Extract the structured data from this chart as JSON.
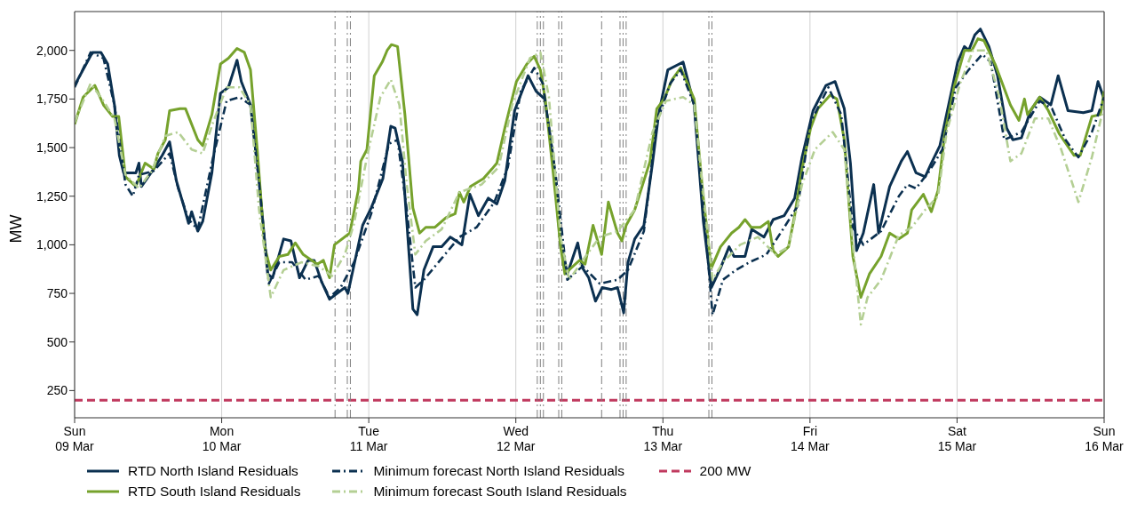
{
  "chart_data": {
    "type": "line",
    "ylabel": "MW",
    "xlim": [
      "--03-09",
      "--03-16"
    ],
    "ylim": [
      110,
      2200
    ],
    "xticks": [
      {
        "value": "--03-09",
        "label": "Sun\n09 Mar"
      },
      {
        "value": "--03-10",
        "label": "Mon\n10 Mar"
      },
      {
        "value": "--03-11",
        "label": "Tue\n11 Mar"
      },
      {
        "value": "--03-12",
        "label": "Wed\n12 Mar"
      },
      {
        "value": "--03-13",
        "label": "Thu\n13 Mar"
      },
      {
        "value": "--03-14",
        "label": "Fri\n14 Mar"
      },
      {
        "value": "--03-15",
        "label": "Sat\n15 Mar"
      },
      {
        "value": "--03-16",
        "label": "Sun\n16 Mar"
      }
    ],
    "yticks": [
      250,
      500,
      750,
      {
        "value": 1000,
        "label": "1,000"
      },
      {
        "value": 1250,
        "label": "1,250"
      },
      {
        "value": 1500,
        "label": "1,500"
      },
      {
        "value": 1750,
        "label": "1,750"
      },
      {
        "value": 2000,
        "label": "2,000"
      }
    ],
    "grid": "x",
    "legend": "bottom",
    "series": [
      {
        "name": "RTD North Island Residuals",
        "color": "#0b3050",
        "line_style": "solid",
        "x": [
          "--03-09T00:00",
          "--03-09T02:54",
          "--03-09T04:18",
          "--03-09T05:24",
          "--03-09T06:30",
          "--03-09T07:18",
          "--03-09T08:00",
          "--03-09T10:00",
          "--03-09T10:30",
          "--03-09T10:54",
          "--03-09T12:54",
          "--03-09T14:18",
          "--03-09T15:30",
          "--03-09T16:36",
          "--03-09T17:54",
          "--03-09T18:36",
          "--03-09T19:06",
          "--03-09T20:06",
          "--03-09T20:54",
          "--03-09T22:24",
          "--03-09T23:48",
          "--03-10T01:06",
          "--03-10T02:30",
          "--03-10T03:12",
          "--03-10T04:42",
          "--03-10T06:06",
          "--03-10T07:30",
          "--03-10T08:18",
          "--03-10T10:06",
          "--03-10T11:18",
          "--03-10T12:42",
          "--03-10T14:06",
          "--03-10T15:06",
          "--03-10T16:18",
          "--03-10T17:36",
          "--03-10T18:24",
          "--03-10T20:06",
          "--03-10T20:36",
          "--03-10T21:54",
          "--03-10T23:00",
          "--03-11T00:24",
          "--03-11T02:18",
          "--03-11T03:36",
          "--03-11T04:18",
          "--03-11T05:30",
          "--03-11T06:12",
          "--03-11T07:12",
          "--03-11T07:54",
          "--03-11T09:00",
          "--03-11T10:30",
          "--03-11T11:54",
          "--03-11T13:18",
          "--03-11T15:12",
          "--03-11T16:30",
          "--03-11T17:54",
          "--03-11T19:30",
          "--03-11T20:54",
          "--03-11T22:12",
          "--03-11T23:48",
          "--03-12T02:00",
          "--03-12T03:18",
          "--03-12T04:42",
          "--03-12T06:06",
          "--03-12T07:18",
          "--03-12T08:24",
          "--03-12T10:06",
          "--03-12T10:54",
          "--03-12T11:54",
          "--03-12T13:00",
          "--03-12T14:06",
          "--03-12T15:36",
          "--03-12T16:36",
          "--03-12T17:36",
          "--03-12T18:18",
          "--03-12T19:24",
          "--03-12T20:54",
          "--03-12T22:18",
          "--03-12T23:18",
          "--03-13T00:48",
          "--03-13T03:18",
          "--03-13T05:06",
          "--03-13T06:36",
          "--03-13T07:54",
          "--03-13T09:24",
          "--03-13T10:48",
          "--03-13T11:36",
          "--03-13T13:24",
          "--03-13T14:30",
          "--03-13T16:30",
          "--03-13T18:00",
          "--03-13T19:48",
          "--03-13T21:30",
          "--03-13T22:42",
          "--03-14T00:30",
          "--03-14T02:36",
          "--03-14T04:06",
          "--03-14T05:36",
          "--03-14T06:36",
          "--03-14T07:36",
          "--03-14T08:42",
          "--03-14T10:24",
          "--03-14T11:12",
          "--03-14T13:00",
          "--03-14T14:54",
          "--03-14T15:54",
          "--03-14T17:18",
          "--03-14T18:48",
          "--03-14T19:48",
          "--03-14T21:12",
          "--03-14T23:06",
          "--03-15T00:06",
          "--03-15T01:12",
          "--03-15T01:54",
          "--03-15T02:54",
          "--03-15T03:48",
          "--03-15T05:12",
          "--03-15T06:36",
          "--03-15T08:06",
          "--03-15T09:06",
          "--03-15T10:30",
          "--03-15T12:00",
          "--03-15T13:30",
          "--03-15T15:18",
          "--03-15T16:30",
          "--03-15T18:06",
          "--03-15T20:36",
          "--03-15T22:00",
          "--03-15T23:00",
          "--03-16T00:00"
        ],
        "values": [
          1820,
          1990,
          1990,
          1930,
          1720,
          1460,
          1370,
          1370,
          1420,
          1300,
          1390,
          1460,
          1530,
          1330,
          1190,
          1110,
          1170,
          1070,
          1120,
          1370,
          1780,
          1810,
          1950,
          1840,
          1720,
          1330,
          850,
          830,
          1030,
          1020,
          830,
          920,
          920,
          810,
          720,
          740,
          780,
          750,
          940,
          1100,
          1190,
          1340,
          1610,
          1600,
          1430,
          1120,
          670,
          640,
          870,
          990,
          990,
          1040,
          1000,
          1260,
          1150,
          1240,
          1210,
          1330,
          1690,
          1870,
          1790,
          1750,
          1450,
          1000,
          850,
          1010,
          880,
          830,
          710,
          780,
          770,
          780,
          650,
          910,
          1030,
          1100,
          1420,
          1670,
          1900,
          1940,
          1720,
          1120,
          780,
          880,
          990,
          940,
          940,
          1080,
          1040,
          1130,
          1150,
          1240,
          1450,
          1690,
          1820,
          1840,
          1700,
          1420,
          970,
          1060,
          1310,
          1060,
          1300,
          1430,
          1480,
          1370,
          1350,
          1420,
          1510,
          1790,
          1940,
          2020,
          2000,
          2080,
          2110,
          2020,
          1870,
          1600,
          1540,
          1550,
          1690,
          1760,
          1720,
          1870,
          1690,
          1680,
          1690,
          1840,
          1750
        ]
      },
      {
        "name": "RTD South Island Residuals",
        "color": "#76a22c",
        "line_style": "solid",
        "x": [
          "--03-09T00:00",
          "--03-09T01:24",
          "--03-09T03:18",
          "--03-09T04:42",
          "--03-09T06:12",
          "--03-09T07:12",
          "--03-09T08:18",
          "--03-09T10:00",
          "--03-09T11:30",
          "--03-09T12:54",
          "--03-09T13:36",
          "--03-09T14:48",
          "--03-09T15:30",
          "--03-09T17:12",
          "--03-09T18:06",
          "--03-09T20:06",
          "--03-09T20:54",
          "--03-09T22:24",
          "--03-09T23:48",
          "--03-10T01:06",
          "--03-10T02:30",
          "--03-10T03:42",
          "--03-10T04:42",
          "--03-10T05:48",
          "--03-10T07:00",
          "--03-10T08:00",
          "--03-10T09:24",
          "--03-10T10:48",
          "--03-10T12:00",
          "--03-10T13:18",
          "--03-10T14:42",
          "--03-10T15:36",
          "--03-10T16:36",
          "--03-10T17:36",
          "--03-10T18:24",
          "--03-10T20:54",
          "--03-10T22:18",
          "--03-10T22:42",
          "--03-10T23:42",
          "--03-11T00:54",
          "--03-11T02:12",
          "--03-11T03:00",
          "--03-11T03:42",
          "--03-11T04:42",
          "--03-11T05:54",
          "--03-11T07:12",
          "--03-11T08:18",
          "--03-11T09:18",
          "--03-11T10:48",
          "--03-11T12:36",
          "--03-11T14:06",
          "--03-11T14:48",
          "--03-11T15:30",
          "--03-11T16:36",
          "--03-11T18:42",
          "--03-11T20:06",
          "--03-11T20:54",
          "--03-11T22:12",
          "--03-12T00:06",
          "--03-12T01:48",
          "--03-12T03:00",
          "--03-12T04:00",
          "--03-12T04:48",
          "--03-12T06:06",
          "--03-12T07:18",
          "--03-12T08:00",
          "--03-12T09:00",
          "--03-12T10:24",
          "--03-12T11:18",
          "--03-12T12:36",
          "--03-12T14:00",
          "--03-12T15:06",
          "--03-12T16:36",
          "--03-12T17:18",
          "--03-12T18:00",
          "--03-12T19:24",
          "--03-12T21:54",
          "--03-12T23:00",
          "--03-13T00:12",
          "--03-13T01:30",
          "--03-13T02:54",
          "--03-13T05:06",
          "--03-13T06:30",
          "--03-13T07:54",
          "--03-13T09:24",
          "--03-13T11:12",
          "--03-13T12:24",
          "--03-13T13:24",
          "--03-13T14:24",
          "--03-13T15:54",
          "--03-13T17:12",
          "--03-13T18:00",
          "--03-13T18:48",
          "--03-13T20:30",
          "--03-13T21:30",
          "--03-13T22:42",
          "--03-14T00:06",
          "--03-14T01:18",
          "--03-14T03:18",
          "--03-14T04:24",
          "--03-14T05:36",
          "--03-14T07:00",
          "--03-14T08:18",
          "--03-14T09:42",
          "--03-14T11:36",
          "--03-14T13:00",
          "--03-14T14:30",
          "--03-14T15:54",
          "--03-14T16:36",
          "--03-14T18:30",
          "--03-14T19:48",
          "--03-14T20:54",
          "--03-14T22:00",
          "--03-14T23:30",
          "--03-15T01:12",
          "--03-15T02:24",
          "--03-15T03:24",
          "--03-15T04:24",
          "--03-15T06:12",
          "--03-15T08:42",
          "--03-15T10:06",
          "--03-15T11:00",
          "--03-15T11:30",
          "--03-15T13:30",
          "--03-15T14:54",
          "--03-15T16:42",
          "--03-15T19:06",
          "--03-15T20:06",
          "--03-15T22:00",
          "--03-15T23:24",
          "--03-16T00:00"
        ],
        "values": [
          1620,
          1760,
          1820,
          1720,
          1660,
          1660,
          1350,
          1300,
          1420,
          1390,
          1470,
          1540,
          1690,
          1700,
          1700,
          1540,
          1510,
          1670,
          1930,
          1960,
          2010,
          1990,
          1900,
          1490,
          990,
          870,
          940,
          950,
          1010,
          950,
          920,
          900,
          920,
          830,
          1000,
          1060,
          1280,
          1430,
          1490,
          1870,
          1940,
          2000,
          2030,
          2020,
          1670,
          1190,
          1060,
          1090,
          1090,
          1140,
          1160,
          1270,
          1220,
          1300,
          1340,
          1390,
          1420,
          1600,
          1840,
          1930,
          1970,
          1900,
          1750,
          1370,
          990,
          850,
          880,
          920,
          900,
          1100,
          950,
          1220,
          1060,
          1020,
          1100,
          1180,
          1430,
          1700,
          1750,
          1850,
          1910,
          1750,
          1270,
          880,
          990,
          1060,
          1090,
          1130,
          1090,
          1090,
          1120,
          970,
          940,
          990,
          1150,
          1390,
          1600,
          1700,
          1770,
          1750,
          1540,
          940,
          730,
          850,
          940,
          1060,
          1030,
          1060,
          1180,
          1260,
          1170,
          1280,
          1570,
          1810,
          2000,
          2000,
          2060,
          2050,
          1930,
          1720,
          1640,
          1750,
          1670,
          1760,
          1690,
          1570,
          1460,
          1460,
          1660,
          1670,
          1790
        ]
      },
      {
        "name": "Minimum forecast North Island Residuals",
        "color": "#0b3050",
        "line_style": "dashdot",
        "x": [
          "--03-09T00:00",
          "--03-09T02:36",
          "--03-09T04:42",
          "--03-09T06:30",
          "--03-09T08:18",
          "--03-09T09:30",
          "--03-09T10:30",
          "--03-09T12:54",
          "--03-09T15:30",
          "--03-09T16:54",
          "--03-09T18:36",
          "--03-09T20:06",
          "--03-09T22:36",
          "--03-10T00:48",
          "--03-10T02:54",
          "--03-10T04:42",
          "--03-10T06:06",
          "--03-10T07:42",
          "--03-10T09:24",
          "--03-10T11:30",
          "--03-10T13:42",
          "--03-10T15:48",
          "--03-10T17:36",
          "--03-10T19:24",
          "--03-10T21:36",
          "--03-11T00:24",
          "--03-11T03:18",
          "--03-11T04:42",
          "--03-11T06:12",
          "--03-11T07:36",
          "--03-11T09:00",
          "--03-11T11:54",
          "--03-11T14:48",
          "--03-11T17:36",
          "--03-11T20:30",
          "--03-11T22:42",
          "--03-12T00:48",
          "--03-12T03:00",
          "--03-12T04:24",
          "--03-12T06:30",
          "--03-12T08:24",
          "--03-12T10:54",
          "--03-12T13:42",
          "--03-12T16:36",
          "--03-12T18:18",
          "--03-12T20:54",
          "--03-12T23:00",
          "--03-13T01:12",
          "--03-13T02:54",
          "--03-13T05:06",
          "--03-13T06:54",
          "--03-13T08:06",
          "--03-13T09:48",
          "--03-13T11:54",
          "--03-13T14:06",
          "--03-13T16:54",
          "--03-13T19:48",
          "--03-13T22:00",
          "--03-14T00:06",
          "--03-14T03:00",
          "--03-14T05:06",
          "--03-14T07:00",
          "--03-14T08:42",
          "--03-14T11:36",
          "--03-14T14:30",
          "--03-14T15:54",
          "--03-14T17:18",
          "--03-14T19:30",
          "--03-14T21:36",
          "--03-14T23:48",
          "--03-15T01:54",
          "--03-15T04:06",
          "--03-15T05:30",
          "--03-15T07:42",
          "--03-15T10:30",
          "--03-15T13:30",
          "--03-15T15:30",
          "--03-15T17:42",
          "--03-15T19:48",
          "--03-15T22:00",
          "--03-16T00:00"
        ],
        "values": [
          1810,
          1990,
          1960,
          1720,
          1310,
          1250,
          1360,
          1380,
          1470,
          1290,
          1130,
          1080,
          1450,
          1740,
          1760,
          1720,
          1320,
          800,
          910,
          910,
          820,
          840,
          730,
          780,
          910,
          1160,
          1520,
          1540,
          1180,
          780,
          820,
          930,
          1040,
          1090,
          1220,
          1400,
          1790,
          1910,
          1830,
          1360,
          820,
          890,
          800,
          820,
          870,
          1070,
          1630,
          1830,
          1900,
          1720,
          1090,
          640,
          820,
          870,
          910,
          950,
          1090,
          1200,
          1630,
          1810,
          1670,
          1090,
          1000,
          1070,
          1250,
          1310,
          1290,
          1380,
          1490,
          1810,
          1900,
          1980,
          1940,
          1540,
          1580,
          1740,
          1700,
          1540,
          1450,
          1580,
          1760
        ]
      },
      {
        "name": "Minimum forecast South Island Residuals",
        "color": "#b4cf94",
        "line_style": "dashdot",
        "x": [
          "--03-09T00:00",
          "--03-09T02:36",
          "--03-09T04:42",
          "--03-09T06:30",
          "--03-09T08:18",
          "--03-09T10:30",
          "--03-09T12:36",
          "--03-09T14:48",
          "--03-09T16:54",
          "--03-09T19:06",
          "--03-09T20:54",
          "--03-09T22:36",
          "--03-10T00:48",
          "--03-10T02:54",
          "--03-10T04:42",
          "--03-10T06:06",
          "--03-10T08:00",
          "--03-10T10:06",
          "--03-10T13:00",
          "--03-10T15:48",
          "--03-10T18:00",
          "--03-10T20:06",
          "--03-10T21:36",
          "--03-10T23:42",
          "--03-11T01:54",
          "--03-11T03:36",
          "--03-11T05:00",
          "--03-11T06:12",
          "--03-11T07:36",
          "--03-11T09:18",
          "--03-11T11:54",
          "--03-11T14:48",
          "--03-11T18:24",
          "--03-11T21:12",
          "--03-11T23:24",
          "--03-12T02:18",
          "--03-12T04:00",
          "--03-12T05:24",
          "--03-12T07:18",
          "--03-12T08:42",
          "--03-12T11:36",
          "--03-12T13:42",
          "--03-12T16:36",
          "--03-12T19:24",
          "--03-12T22:18",
          "--03-13T00:30",
          "--03-13T03:18",
          "--03-13T05:06",
          "--03-13T06:54",
          "--03-13T08:06",
          "--03-13T09:48",
          "--03-13T12:36",
          "--03-13T15:30",
          "--03-13T18:24",
          "--03-13T20:30",
          "--03-13T22:42",
          "--03-14T00:48",
          "--03-14T03:42",
          "--03-14T05:36",
          "--03-14T07:00",
          "--03-14T08:18",
          "--03-14T09:24",
          "--03-14T11:36",
          "--03-14T14:30",
          "--03-14T16:36",
          "--03-14T18:48",
          "--03-14T20:54",
          "--03-14T22:18",
          "--03-15T00:30",
          "--03-15T02:36",
          "--03-15T04:48",
          "--03-15T06:54",
          "--03-15T08:42",
          "--03-15T10:30",
          "--03-15T12:42",
          "--03-15T14:54",
          "--03-15T17:00",
          "--03-15T19:48",
          "--03-15T22:00",
          "--03-16T00:00"
        ],
        "values": [
          1630,
          1830,
          1740,
          1650,
          1360,
          1290,
          1380,
          1560,
          1580,
          1490,
          1470,
          1630,
          1810,
          1810,
          1720,
          1180,
          730,
          870,
          910,
          890,
          840,
          950,
          1110,
          1450,
          1760,
          1850,
          1720,
          1310,
          950,
          1020,
          1080,
          1270,
          1310,
          1400,
          1720,
          1960,
          1990,
          1760,
          1040,
          820,
          950,
          1040,
          1070,
          1180,
          1580,
          1740,
          1760,
          1720,
          1180,
          820,
          910,
          1000,
          1040,
          950,
          990,
          1310,
          1490,
          1580,
          1490,
          1000,
          590,
          730,
          820,
          1050,
          1090,
          1180,
          1250,
          1580,
          1830,
          2000,
          2000,
          1760,
          1430,
          1470,
          1650,
          1650,
          1490,
          1220,
          1450,
          1720
        ]
      }
    ],
    "ref_lines": [
      {
        "axis": "y",
        "value": 200,
        "label": "200 MW",
        "color": "#c0395e",
        "line_style": "dashed"
      },
      {
        "axis": "x",
        "value": "--03-10T18:30",
        "color": "#7f7f7f",
        "line_style": "dashdot"
      },
      {
        "axis": "x",
        "value": "--03-10T20:30",
        "color": "#7f7f7f",
        "line_style": "dashdot"
      },
      {
        "axis": "x",
        "value": "--03-10T21:00",
        "color": "#7f7f7f",
        "line_style": "dashdot"
      },
      {
        "axis": "x",
        "value": "--03-12T03:30",
        "color": "#7f7f7f",
        "line_style": "dashdot"
      },
      {
        "axis": "x",
        "value": "--03-12T04:00",
        "color": "#7f7f7f",
        "line_style": "dashdot"
      },
      {
        "axis": "x",
        "value": "--03-12T04:30",
        "color": "#7f7f7f",
        "line_style": "dashdot"
      },
      {
        "axis": "x",
        "value": "--03-12T07:00",
        "color": "#7f7f7f",
        "line_style": "dashdot"
      },
      {
        "axis": "x",
        "value": "--03-12T07:30",
        "color": "#7f7f7f",
        "line_style": "dashdot"
      },
      {
        "axis": "x",
        "value": "--03-12T14:00",
        "color": "#7f7f7f",
        "line_style": "dashdot"
      },
      {
        "axis": "x",
        "value": "--03-12T17:00",
        "color": "#7f7f7f",
        "line_style": "dashdot"
      },
      {
        "axis": "x",
        "value": "--03-12T17:30",
        "color": "#7f7f7f",
        "line_style": "dashdot"
      },
      {
        "axis": "x",
        "value": "--03-12T18:00",
        "color": "#7f7f7f",
        "line_style": "dashdot"
      },
      {
        "axis": "x",
        "value": "--03-13T07:30",
        "color": "#7f7f7f",
        "line_style": "dashdot"
      },
      {
        "axis": "x",
        "value": "--03-13T08:00",
        "color": "#7f7f7f",
        "line_style": "dashdot"
      }
    ]
  }
}
